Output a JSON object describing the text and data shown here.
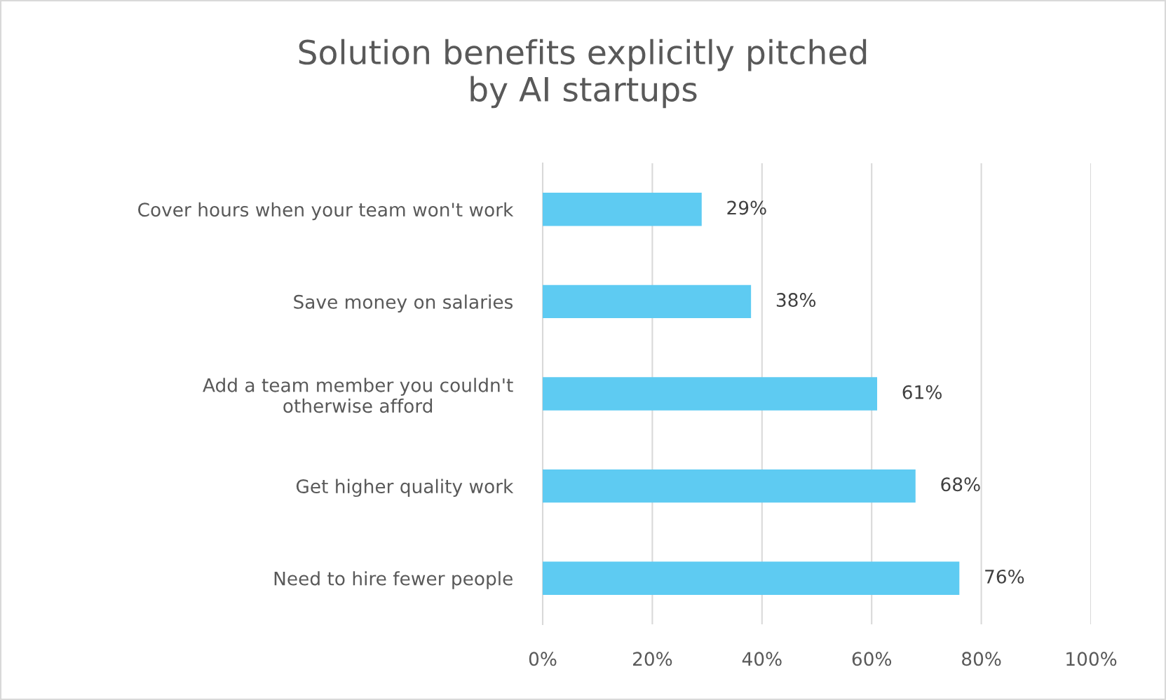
{
  "chart_data": {
    "type": "bar",
    "orientation": "horizontal",
    "title": "Solution benefits explicitly pitched\nby AI startups",
    "categories": [
      "Cover hours when your team won't work",
      "Save money on salaries",
      "Add a team member you couldn't\notherwise afford",
      "Get higher quality work",
      "Need to hire fewer people"
    ],
    "values": [
      29,
      38,
      61,
      68,
      76
    ],
    "value_labels": [
      "29%",
      "38%",
      "61%",
      "68%",
      "76%"
    ],
    "color": "#5ecbf2",
    "xlim": [
      0,
      100
    ],
    "xticks": [
      {
        "value": 0,
        "label": "0%"
      },
      {
        "value": 20,
        "label": "20%"
      },
      {
        "value": 40,
        "label": "40%"
      },
      {
        "value": 60,
        "label": "60%"
      },
      {
        "value": 80,
        "label": "80%"
      },
      {
        "value": 100,
        "label": "100%"
      }
    ],
    "grid": "x"
  }
}
